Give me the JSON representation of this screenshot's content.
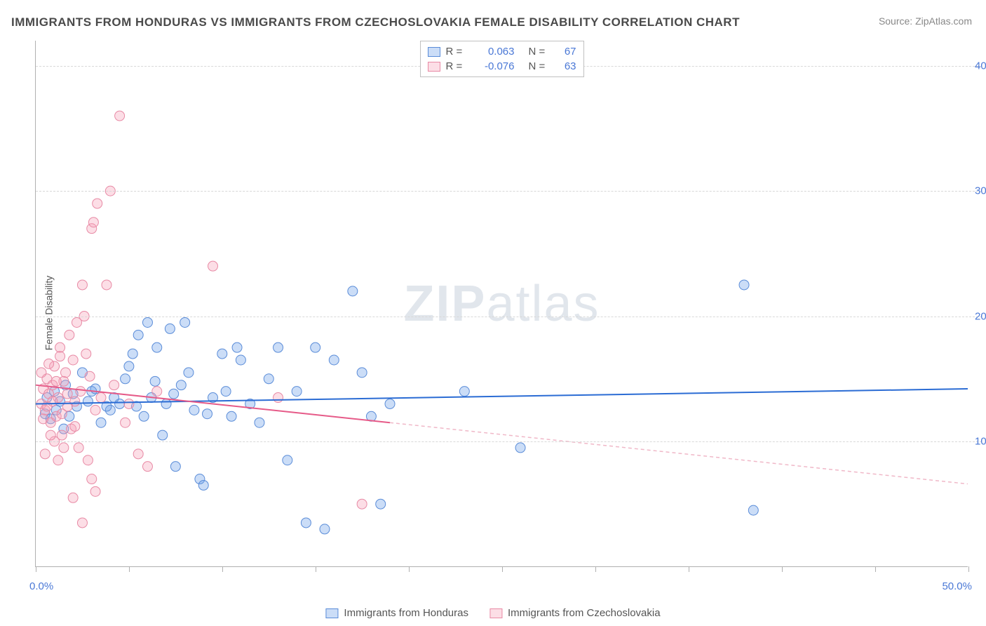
{
  "title": "IMMIGRANTS FROM HONDURAS VS IMMIGRANTS FROM CZECHOSLOVAKIA FEMALE DISABILITY CORRELATION CHART",
  "source": "Source: ZipAtlas.com",
  "y_axis_label": "Female Disability",
  "watermark": {
    "bold": "ZIP",
    "light": "atlas"
  },
  "chart": {
    "type": "scatter",
    "xlim": [
      0,
      50
    ],
    "ylim": [
      0,
      42
    ],
    "x_ticks": [
      0,
      5,
      10,
      15,
      20,
      25,
      30,
      35,
      40,
      45,
      50
    ],
    "x_tick_labels": {
      "0": "0.0%",
      "50": "50.0%"
    },
    "y_gridlines": [
      10,
      20,
      30,
      40
    ],
    "y_tick_labels": {
      "10": "10.0%",
      "20": "20.0%",
      "30": "30.0%",
      "40": "40.0%"
    },
    "background_color": "#ffffff",
    "grid_color": "#d8d8d8",
    "axis_color": "#b0b0b0",
    "label_color": "#4a78d6",
    "marker_radius": 7,
    "marker_opacity": 0.5,
    "series": [
      {
        "name": "Immigrants from Honduras",
        "color": "#6a9de8",
        "fill": "rgba(106,157,232,0.35)",
        "stroke": "#5a8cd8",
        "R": "0.063",
        "N": "67",
        "trend": {
          "x1": 0,
          "y1": 13.0,
          "x2": 50,
          "y2": 14.2,
          "color": "#2b6cd4",
          "width": 2,
          "dash": null,
          "extrapolate_end": 50
        },
        "points": [
          [
            0.5,
            12.2
          ],
          [
            0.6,
            13.5
          ],
          [
            0.8,
            11.8
          ],
          [
            1.0,
            14.0
          ],
          [
            1.1,
            12.5
          ],
          [
            1.3,
            13.2
          ],
          [
            1.5,
            11.0
          ],
          [
            1.6,
            14.5
          ],
          [
            1.8,
            12.0
          ],
          [
            2.0,
            13.8
          ],
          [
            2.2,
            12.8
          ],
          [
            2.5,
            15.5
          ],
          [
            3.0,
            14.0
          ],
          [
            3.5,
            11.5
          ],
          [
            4.0,
            12.5
          ],
          [
            4.5,
            13.0
          ],
          [
            5.0,
            16.0
          ],
          [
            5.2,
            17.0
          ],
          [
            5.5,
            18.5
          ],
          [
            5.8,
            12.0
          ],
          [
            6.0,
            19.5
          ],
          [
            6.2,
            13.5
          ],
          [
            6.5,
            17.5
          ],
          [
            6.8,
            10.5
          ],
          [
            7.0,
            13.0
          ],
          [
            7.2,
            19.0
          ],
          [
            7.5,
            8.0
          ],
          [
            7.8,
            14.5
          ],
          [
            8.0,
            19.5
          ],
          [
            8.5,
            12.5
          ],
          [
            8.8,
            7.0
          ],
          [
            9.0,
            6.5
          ],
          [
            9.5,
            13.5
          ],
          [
            10.0,
            17.0
          ],
          [
            10.2,
            14.0
          ],
          [
            10.5,
            12.0
          ],
          [
            10.8,
            17.5
          ],
          [
            11.0,
            16.5
          ],
          [
            11.5,
            13.0
          ],
          [
            12.0,
            11.5
          ],
          [
            12.5,
            15.0
          ],
          [
            13.0,
            17.5
          ],
          [
            13.5,
            8.5
          ],
          [
            14.0,
            14.0
          ],
          [
            14.5,
            3.5
          ],
          [
            15.0,
            17.5
          ],
          [
            15.5,
            3.0
          ],
          [
            16.0,
            16.5
          ],
          [
            17.0,
            22.0
          ],
          [
            17.5,
            15.5
          ],
          [
            18.0,
            12.0
          ],
          [
            18.5,
            5.0
          ],
          [
            19.0,
            13.0
          ],
          [
            23.0,
            14.0
          ],
          [
            26.0,
            9.5
          ],
          [
            38.0,
            22.5
          ],
          [
            38.5,
            4.5
          ],
          [
            4.2,
            13.5
          ],
          [
            4.8,
            15.0
          ],
          [
            5.4,
            12.8
          ],
          [
            6.4,
            14.8
          ],
          [
            7.4,
            13.8
          ],
          [
            8.2,
            15.5
          ],
          [
            9.2,
            12.2
          ],
          [
            2.8,
            13.2
          ],
          [
            3.2,
            14.2
          ],
          [
            3.8,
            12.8
          ]
        ]
      },
      {
        "name": "Immigrants from Czechoslovakia",
        "color": "#f5a0b8",
        "fill": "rgba(245,160,184,0.35)",
        "stroke": "#e88aa5",
        "R": "-0.076",
        "N": "63",
        "trend": {
          "x1": 0,
          "y1": 14.5,
          "x2": 19,
          "y2": 11.5,
          "color": "#e65a88",
          "width": 2,
          "dash": null,
          "extrapolate_end": 50,
          "extrapolate_color": "#f0b8c8",
          "extrapolate_dash": "5,4"
        },
        "points": [
          [
            0.3,
            13.0
          ],
          [
            0.4,
            14.2
          ],
          [
            0.5,
            12.5
          ],
          [
            0.6,
            15.0
          ],
          [
            0.7,
            13.8
          ],
          [
            0.8,
            11.5
          ],
          [
            0.9,
            14.5
          ],
          [
            1.0,
            16.0
          ],
          [
            1.1,
            12.0
          ],
          [
            1.2,
            13.5
          ],
          [
            1.3,
            17.5
          ],
          [
            1.4,
            10.5
          ],
          [
            1.5,
            14.8
          ],
          [
            1.6,
            15.5
          ],
          [
            1.7,
            12.8
          ],
          [
            1.8,
            18.5
          ],
          [
            1.9,
            11.0
          ],
          [
            2.0,
            16.5
          ],
          [
            2.1,
            13.2
          ],
          [
            2.2,
            19.5
          ],
          [
            2.3,
            9.5
          ],
          [
            2.4,
            14.0
          ],
          [
            2.5,
            22.5
          ],
          [
            2.6,
            20.0
          ],
          [
            2.7,
            17.0
          ],
          [
            2.8,
            8.5
          ],
          [
            2.9,
            15.2
          ],
          [
            3.0,
            27.0
          ],
          [
            3.1,
            27.5
          ],
          [
            3.2,
            12.5
          ],
          [
            3.3,
            29.0
          ],
          [
            3.5,
            13.5
          ],
          [
            3.8,
            22.5
          ],
          [
            4.0,
            30.0
          ],
          [
            4.2,
            14.5
          ],
          [
            4.5,
            36.0
          ],
          [
            4.8,
            11.5
          ],
          [
            5.0,
            13.0
          ],
          [
            5.5,
            9.0
          ],
          [
            6.0,
            8.0
          ],
          [
            6.5,
            14.0
          ],
          [
            2.0,
            5.5
          ],
          [
            2.5,
            3.5
          ],
          [
            3.0,
            7.0
          ],
          [
            3.2,
            6.0
          ],
          [
            1.0,
            10.0
          ],
          [
            1.2,
            8.5
          ],
          [
            0.5,
            9.0
          ],
          [
            0.8,
            10.5
          ],
          [
            1.5,
            9.5
          ],
          [
            0.4,
            11.8
          ],
          [
            0.6,
            12.8
          ],
          [
            0.9,
            13.2
          ],
          [
            1.1,
            14.8
          ],
          [
            1.4,
            12.2
          ],
          [
            1.7,
            13.8
          ],
          [
            2.1,
            11.2
          ],
          [
            9.5,
            24.0
          ],
          [
            13.0,
            13.5
          ],
          [
            17.5,
            5.0
          ],
          [
            0.3,
            15.5
          ],
          [
            0.7,
            16.2
          ],
          [
            1.3,
            16.8
          ]
        ]
      }
    ]
  },
  "legend_top": {
    "r_label": "R =",
    "n_label": "N ="
  },
  "legend_bottom": [
    {
      "series_index": 0
    },
    {
      "series_index": 1
    }
  ]
}
